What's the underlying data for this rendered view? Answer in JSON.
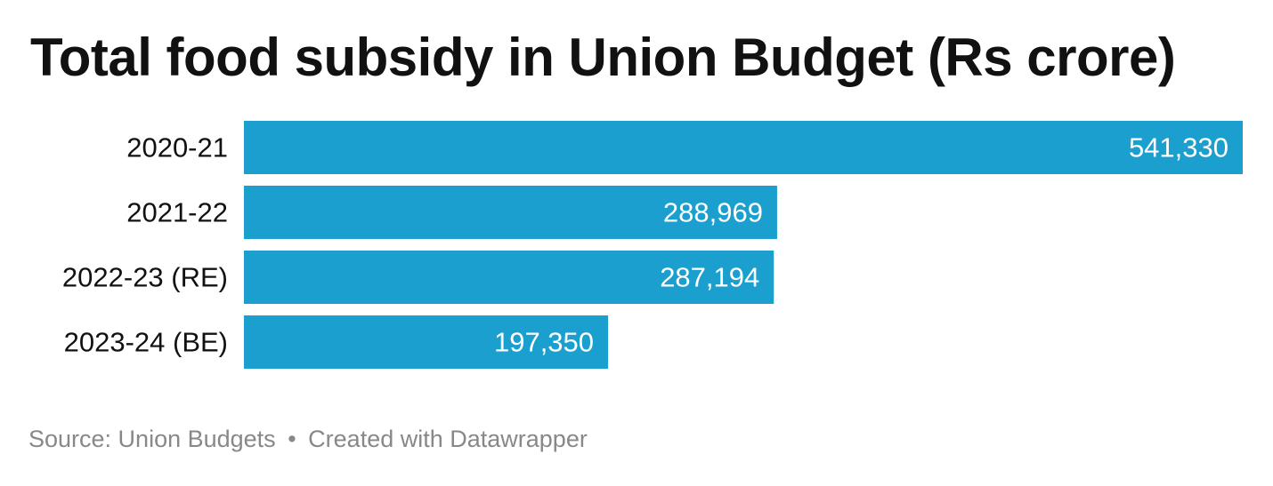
{
  "title": "Total food subsidy in Union Budget (Rs crore)",
  "footer": {
    "source": "Source: Union Budgets",
    "separator": "•",
    "credit": "Created with Datawrapper"
  },
  "colors": {
    "bar": "#1a9fcf",
    "bar_label": "#ffffff",
    "category_label": "#111111"
  },
  "chart_data": {
    "type": "bar",
    "orientation": "horizontal",
    "title": "Total food subsidy in Union Budget (Rs crore)",
    "xlabel": "",
    "ylabel": "",
    "categories": [
      "2020-21",
      "2021-22",
      "2022-23 (RE)",
      "2023-24 (BE)"
    ],
    "values": [
      541330,
      288969,
      287194,
      197350
    ],
    "value_labels": [
      "541,330",
      "288,969",
      "287,194",
      "197,350"
    ],
    "xlim": [
      0,
      541330
    ],
    "grid": false,
    "legend": "none"
  }
}
